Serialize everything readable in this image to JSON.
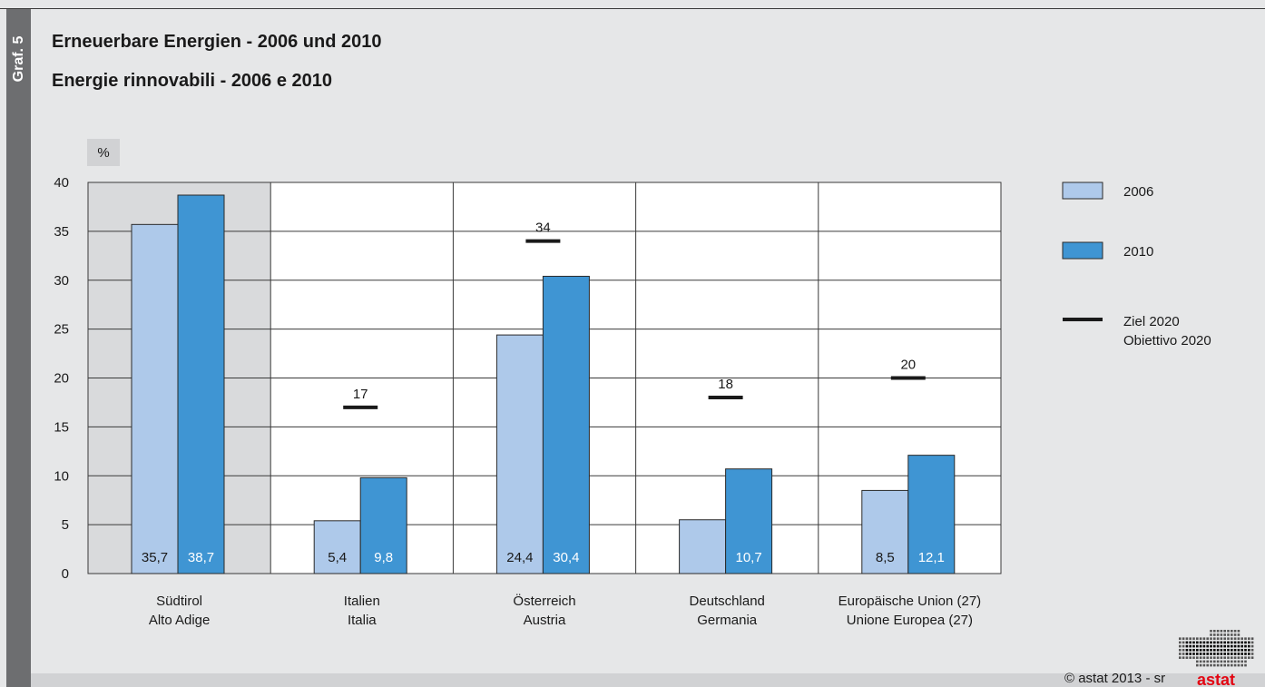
{
  "side_label": "Graf. 5",
  "title_de": "Erneuerbare Energien - 2006 und 2010",
  "title_it": "Energie rinnovabili - 2006 e 2010",
  "unit": "%",
  "credit": "©  astat 2013 - sr",
  "logo_text": "astat",
  "colors": {
    "series_2006": "#aec9ea",
    "series_2010": "#3f95d3",
    "target": "#1a1a1a",
    "highlight_group": "#d9dadc",
    "plot_bg": "#ffffff",
    "logo_red": "#e30613"
  },
  "chart_data": {
    "type": "bar",
    "categories": [
      [
        "Südtirol",
        "Alto Adige"
      ],
      [
        "Italien",
        "Italia"
      ],
      [
        "Österreich",
        "Austria"
      ],
      [
        "Deutschland",
        "Germania"
      ],
      [
        "Europäische Union (27)",
        "Unione Europea (27)"
      ]
    ],
    "series": [
      {
        "name": "2006",
        "values": [
          35.7,
          5.4,
          24.4,
          5.5,
          8.5
        ],
        "labels": [
          "35,7",
          "5,4",
          "24,4",
          "",
          "8,5"
        ]
      },
      {
        "name": "2010",
        "values": [
          38.7,
          9.8,
          30.4,
          10.7,
          12.1
        ],
        "labels": [
          "38,7",
          "9,8",
          "30,4",
          "10,7",
          "12,1"
        ]
      }
    ],
    "target": {
      "name": [
        "Ziel 2020",
        "Obiettivo 2020"
      ],
      "values": [
        null,
        17,
        34,
        18,
        20
      ],
      "labels": [
        "",
        "17",
        "34",
        "18",
        "20"
      ]
    },
    "highlighted_category": 0,
    "ylim": [
      0,
      40
    ],
    "yticks": [
      0,
      5,
      10,
      15,
      20,
      25,
      30,
      35,
      40
    ],
    "grid": true,
    "legend_position": "right"
  }
}
